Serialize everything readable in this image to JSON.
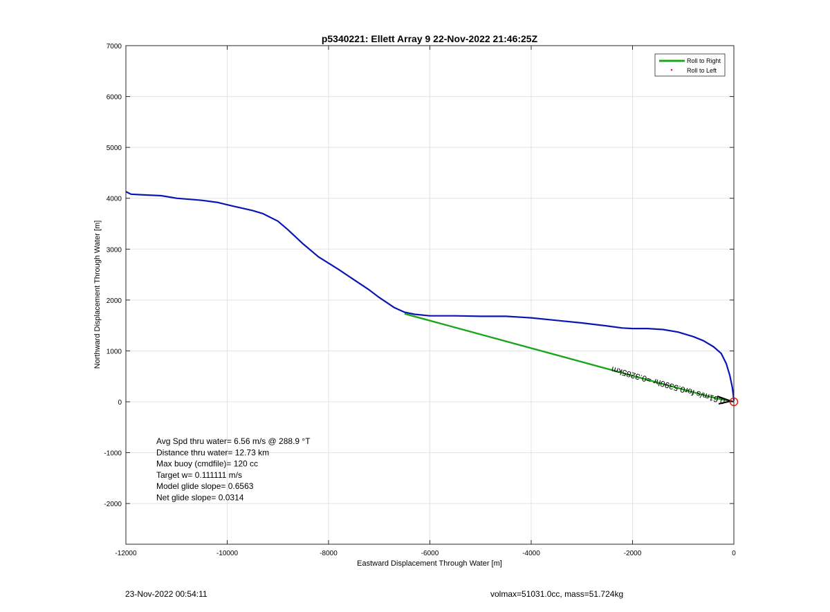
{
  "chart_data": {
    "type": "line",
    "title": "p5340221: Ellett Array 9 22-Nov-2022 21:46:25Z",
    "xlabel": "Eastward Displacement Through Water [m]",
    "ylabel": "Northward Displacement Through Water [m]",
    "xlim": [
      -12000,
      0
    ],
    "ylim": [
      -2800,
      7000
    ],
    "xticks": [
      -12000,
      -10000,
      -8000,
      -6000,
      -4000,
      -2000,
      0
    ],
    "yticks": [
      -2000,
      -1000,
      0,
      1000,
      2000,
      3000,
      4000,
      5000,
      6000,
      7000
    ],
    "grid": true,
    "legend": {
      "placement": "top-right",
      "entries": [
        {
          "label": "Roll to Right",
          "color": "#1aa51a",
          "style": "line"
        },
        {
          "label": "Roll to Left",
          "color": "#e81e1e",
          "style": "marker"
        }
      ]
    },
    "series": [
      {
        "color": "#0a14b4",
        "x": [
          -12000,
          -11900,
          -11700,
          -11300,
          -11000,
          -10500,
          -10200,
          -9900,
          -9500,
          -9300,
          -9000,
          -8800,
          -8500,
          -8200,
          -7800,
          -7500,
          -7200,
          -7000,
          -6700,
          -6500,
          -6300,
          -6000,
          -5500,
          -5000,
          -4500,
          -4000,
          -3500,
          -3000,
          -2500,
          -2200,
          -2000,
          -1700,
          -1400,
          -1100,
          -800,
          -600,
          -400,
          -250,
          -150,
          -80,
          -30,
          -10,
          0
        ],
        "y": [
          4130,
          4080,
          4070,
          4050,
          4000,
          3960,
          3920,
          3850,
          3760,
          3700,
          3550,
          3380,
          3100,
          2850,
          2600,
          2400,
          2200,
          2050,
          1850,
          1760,
          1720,
          1690,
          1690,
          1680,
          1680,
          1650,
          1600,
          1550,
          1490,
          1450,
          1440,
          1440,
          1420,
          1370,
          1280,
          1200,
          1080,
          950,
          750,
          520,
          280,
          120,
          20
        ]
      },
      {
        "name": "Roll to Right",
        "color": "#1aa51a",
        "x": [
          -6500,
          -400,
          0
        ],
        "y": [
          1730,
          80,
          0
        ]
      }
    ],
    "annotations": {
      "stats": [
        "Avg Spd thru water=  6.56 m/s @ 288.9 °T",
        "Distance thru water= 12.73 km",
        "Max buoy (cmdfile)= 120 cc",
        "Target w= 0.111111 m/s",
        "Model glide slope= 0.6563",
        "Net glide slope= 0.0314"
      ],
      "rotated_label": "0.61m/s for0.5390hr =0.3285km",
      "rotated_label_anchor": [
        0,
        0
      ],
      "rotated_label_angle": 196,
      "origin_marker": {
        "x": 0,
        "y": 0,
        "color": "#e81e1e"
      }
    }
  },
  "footer": {
    "left": "23-Nov-2022 00:54:11",
    "right": "volmax=51031.0cc, mass=51.724kg"
  }
}
